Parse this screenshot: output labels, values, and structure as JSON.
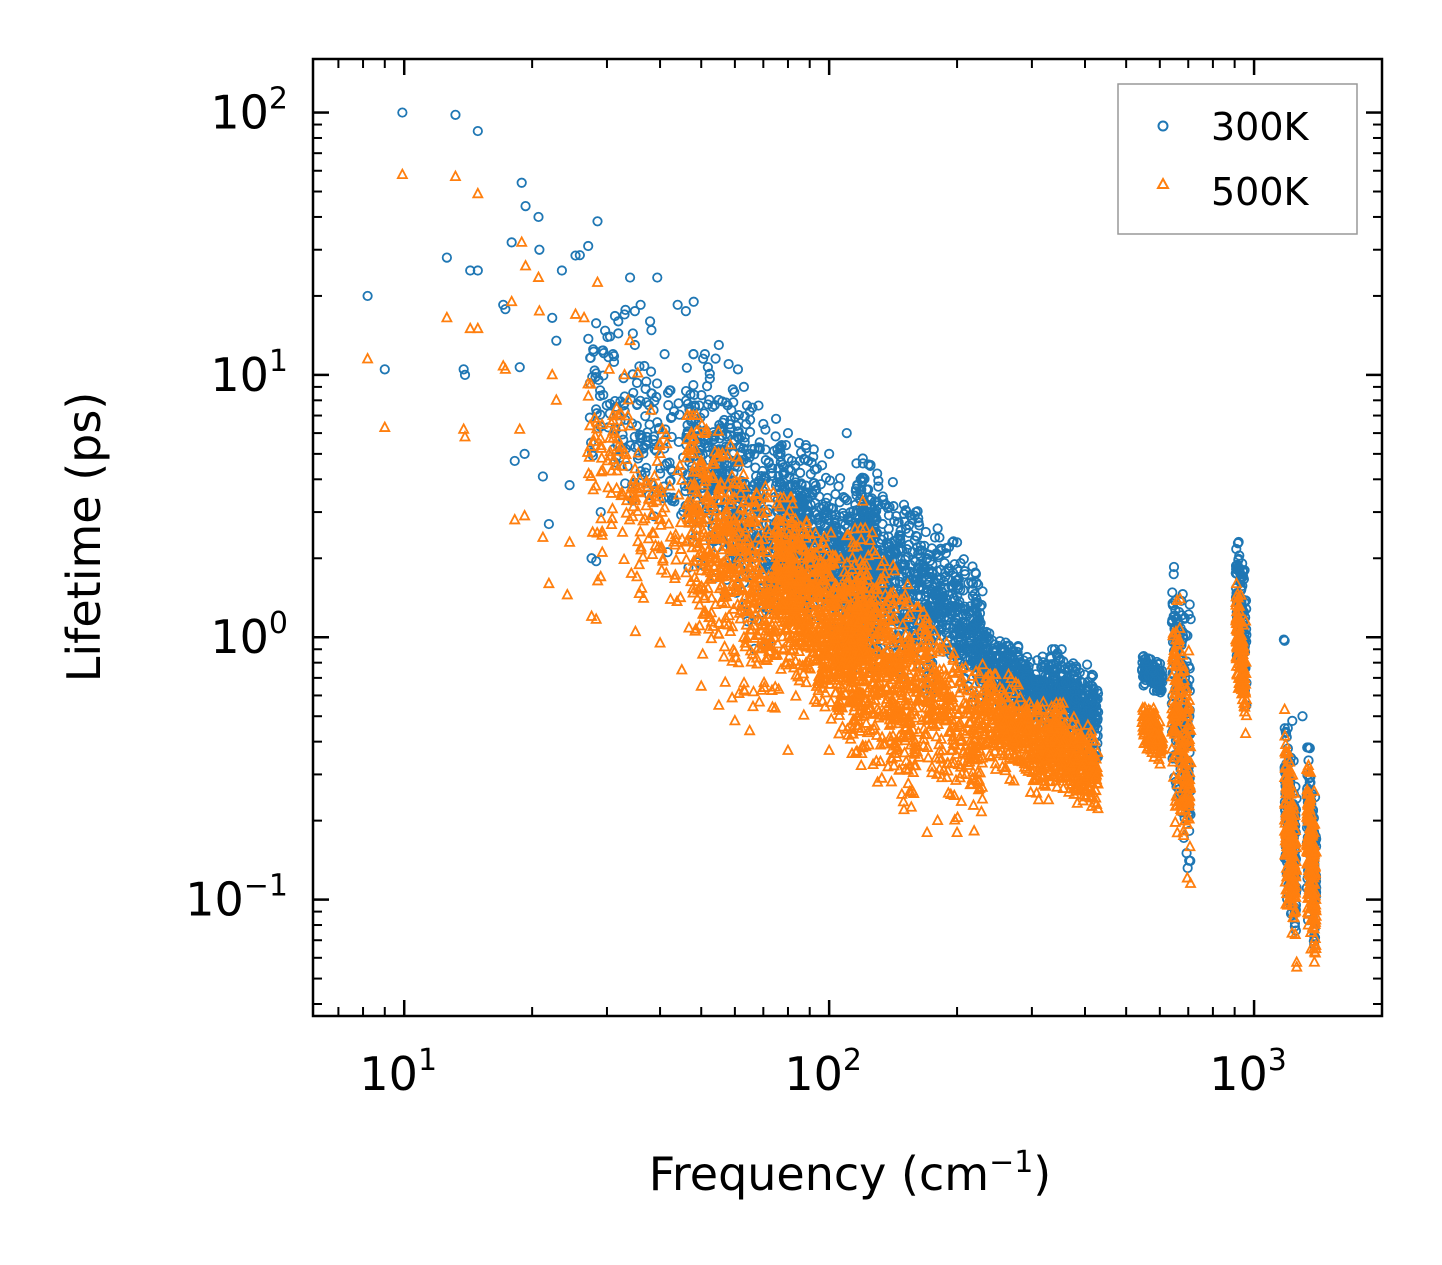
{
  "chart_data": {
    "type": "scatter",
    "xscale": "log",
    "yscale": "log",
    "xlim": [
      6.1,
      2000
    ],
    "ylim": [
      0.036,
      160
    ],
    "xlabel": "Frequency (cm",
    "xlabel_exponent": "−1",
    "xlabel_suffix": ")",
    "ylabel": "Lifetime (ps)",
    "xticks": [
      {
        "value": 10,
        "base": "10",
        "exp": "1"
      },
      {
        "value": 100,
        "base": "10",
        "exp": "2"
      },
      {
        "value": 1000,
        "base": "10",
        "exp": "3"
      }
    ],
    "yticks": [
      {
        "value": 0.1,
        "base": "10",
        "exp": "−1"
      },
      {
        "value": 1,
        "base": "10",
        "exp": "0"
      },
      {
        "value": 10,
        "base": "10",
        "exp": "1"
      },
      {
        "value": 100,
        "base": "10",
        "exp": "2"
      }
    ],
    "legend": {
      "position": "top-right"
    },
    "series": [
      {
        "name": "300K",
        "marker": "circle",
        "color": "#1f77b4",
        "explicit_points": [
          [
            8.2,
            20
          ],
          [
            9.0,
            10.5
          ],
          [
            9.9,
            100
          ],
          [
            12.6,
            28
          ],
          [
            13.2,
            98
          ],
          [
            13.8,
            10.5
          ],
          [
            13.9,
            10
          ],
          [
            14.3,
            25
          ],
          [
            14.9,
            85
          ],
          [
            14.9,
            25
          ],
          [
            17.1,
            18.5
          ],
          [
            17.3,
            17.8
          ],
          [
            17.9,
            32
          ],
          [
            18.2,
            4.7
          ],
          [
            18.7,
            10.7
          ],
          [
            18.9,
            54
          ],
          [
            19.3,
            44
          ],
          [
            19.2,
            5
          ],
          [
            20.7,
            40
          ],
          [
            20.8,
            30
          ],
          [
            21.2,
            4.1
          ],
          [
            21.9,
            2.7
          ],
          [
            22.3,
            16.5
          ],
          [
            22.8,
            13.5
          ],
          [
            23.5,
            25
          ],
          [
            24.5,
            3.8
          ],
          [
            25.3,
            28.5
          ],
          [
            25.9,
            28.6
          ],
          [
            27.1,
            31
          ],
          [
            27.6,
            2.0
          ],
          [
            28.3,
            1.95
          ],
          [
            28.5,
            38.5
          ],
          [
            29.0,
            3.0
          ],
          [
            30.5,
            14
          ],
          [
            31.0,
            12
          ],
          [
            31.9,
            16
          ],
          [
            33.0,
            17
          ],
          [
            34.0,
            23.5
          ],
          [
            34.9,
            17.5
          ],
          [
            36.0,
            18.5
          ],
          [
            37.9,
            16
          ],
          [
            39.4,
            23.5
          ],
          [
            41.0,
            12
          ],
          [
            44.0,
            18.5
          ],
          [
            46.0,
            17.5
          ],
          [
            48.0,
            19
          ],
          [
            51.0,
            12
          ],
          [
            55.0,
            13
          ],
          [
            58.0,
            11
          ],
          [
            61.0,
            10.5
          ],
          [
            63.0,
            9
          ],
          [
            66.0,
            7.5
          ],
          [
            70.0,
            6.5
          ],
          [
            75.0,
            6.8
          ],
          [
            80.0,
            6
          ],
          [
            85.0,
            5.5
          ],
          [
            92.0,
            5.2
          ],
          [
            100.0,
            5.0
          ],
          [
            110.0,
            6.0
          ],
          [
            120.0,
            4.8
          ],
          [
            125.0,
            4.5
          ],
          [
            150.0,
            3.2
          ],
          [
            160.0,
            3.0
          ],
          [
            180.0,
            2.6
          ],
          [
            195.0,
            2.3
          ],
          [
            200.0,
            2.3
          ],
          [
            218.0,
            1.6
          ],
          [
            1175.0,
            0.98
          ],
          [
            1180.0,
            0.97
          ],
          [
            1230.0,
            0.48
          ],
          [
            1300.0,
            0.5
          ]
        ],
        "clusters": [
          {
            "x": [
              27,
              46
            ],
            "y": [
              1.9,
              18
            ],
            "n": 170
          },
          {
            "x": [
              46,
              75
            ],
            "y": [
              0.9,
              12
            ],
            "n": 460
          },
          {
            "x": [
              75,
              130
            ],
            "y": [
              0.75,
              5.4
            ],
            "n": 800
          },
          {
            "x": [
              115,
              175
            ],
            "y": [
              0.6,
              4.6
            ],
            "n": 500
          },
          {
            "x": [
              175,
              230
            ],
            "y": [
              0.55,
              2.4
            ],
            "n": 300
          },
          {
            "x": [
              230,
              330
            ],
            "y": [
              0.45,
              1.05
            ],
            "n": 360
          },
          {
            "x": [
              330,
              430
            ],
            "y": [
              0.35,
              0.9
            ],
            "n": 320
          },
          {
            "x": [
              545,
              610
            ],
            "y": [
              0.6,
              0.85
            ],
            "n": 120
          },
          {
            "x": [
              640,
              710
            ],
            "y": [
              0.12,
              2.2
            ],
            "n": 200
          },
          {
            "x": [
              905,
              960
            ],
            "y": [
              0.55,
              2.7
            ],
            "n": 120
          },
          {
            "x": [
              1180,
              1260
            ],
            "y": [
              0.06,
              0.45
            ],
            "n": 180
          },
          {
            "x": [
              1330,
              1400
            ],
            "y": [
              0.055,
              0.38
            ],
            "n": 160
          }
        ]
      },
      {
        "name": "500K",
        "marker": "triangle",
        "color": "#ff7f0e",
        "explicit_points": [
          [
            8.2,
            11.5
          ],
          [
            9.0,
            6.3
          ],
          [
            9.9,
            58
          ],
          [
            12.6,
            16.5
          ],
          [
            13.2,
            57
          ],
          [
            13.8,
            6.2
          ],
          [
            13.9,
            5.8
          ],
          [
            14.3,
            15
          ],
          [
            14.9,
            49
          ],
          [
            14.9,
            15
          ],
          [
            17.1,
            10.8
          ],
          [
            17.3,
            10.5
          ],
          [
            17.9,
            19
          ],
          [
            18.2,
            2.8
          ],
          [
            18.7,
            6.2
          ],
          [
            18.9,
            32
          ],
          [
            19.2,
            2.9
          ],
          [
            19.3,
            26
          ],
          [
            20.7,
            23.5
          ],
          [
            20.8,
            17.5
          ],
          [
            21.2,
            2.4
          ],
          [
            21.9,
            1.6
          ],
          [
            22.3,
            10
          ],
          [
            22.8,
            8
          ],
          [
            24.5,
            2.3
          ],
          [
            24.2,
            1.45
          ],
          [
            25.3,
            17
          ],
          [
            26.5,
            16.5
          ],
          [
            27.6,
            1.2
          ],
          [
            28.3,
            1.17
          ],
          [
            28.5,
            22.5
          ],
          [
            29.0,
            1.7
          ],
          [
            31.0,
            7
          ],
          [
            33.0,
            10
          ],
          [
            34.0,
            13.5
          ],
          [
            35.0,
            1.05
          ],
          [
            40.0,
            0.95
          ],
          [
            45.0,
            0.75
          ],
          [
            50.0,
            0.65
          ],
          [
            55.0,
            0.55
          ],
          [
            60.0,
            0.48
          ],
          [
            65.0,
            0.44
          ],
          [
            80.0,
            0.37
          ],
          [
            100.0,
            0.37
          ],
          [
            120.0,
            3.3
          ],
          [
            130.0,
            0.28
          ],
          [
            150.0,
            0.22
          ],
          [
            170.0,
            0.18
          ],
          [
            180.0,
            0.2
          ],
          [
            200.0,
            0.18
          ],
          [
            1180.0,
            0.53
          ]
        ],
        "clusters": [
          {
            "x": [
              27,
              46
            ],
            "y": [
              1.0,
              10.5
            ],
            "n": 170
          },
          {
            "x": [
              46,
              75
            ],
            "y": [
              0.48,
              7
            ],
            "n": 500
          },
          {
            "x": [
              75,
              120
            ],
            "y": [
              0.36,
              3.4
            ],
            "n": 800
          },
          {
            "x": [
              110,
              160
            ],
            "y": [
              0.22,
              2.6
            ],
            "n": 520
          },
          {
            "x": [
              160,
              230
            ],
            "y": [
              0.18,
              1.3
            ],
            "n": 320
          },
          {
            "x": [
              230,
              330
            ],
            "y": [
              0.24,
              0.72
            ],
            "n": 360
          },
          {
            "x": [
              330,
              430
            ],
            "y": [
              0.2,
              0.56
            ],
            "n": 320
          },
          {
            "x": [
              545,
              610
            ],
            "y": [
              0.32,
              0.55
            ],
            "n": 120
          },
          {
            "x": [
              640,
              710
            ],
            "y": [
              0.11,
              1.4
            ],
            "n": 200
          },
          {
            "x": [
              905,
              960
            ],
            "y": [
              0.4,
              1.6
            ],
            "n": 120
          },
          {
            "x": [
              1180,
              1260
            ],
            "y": [
              0.055,
              0.42
            ],
            "n": 180
          },
          {
            "x": [
              1330,
              1400
            ],
            "y": [
              0.052,
              0.34
            ],
            "n": 160
          }
        ]
      }
    ]
  }
}
